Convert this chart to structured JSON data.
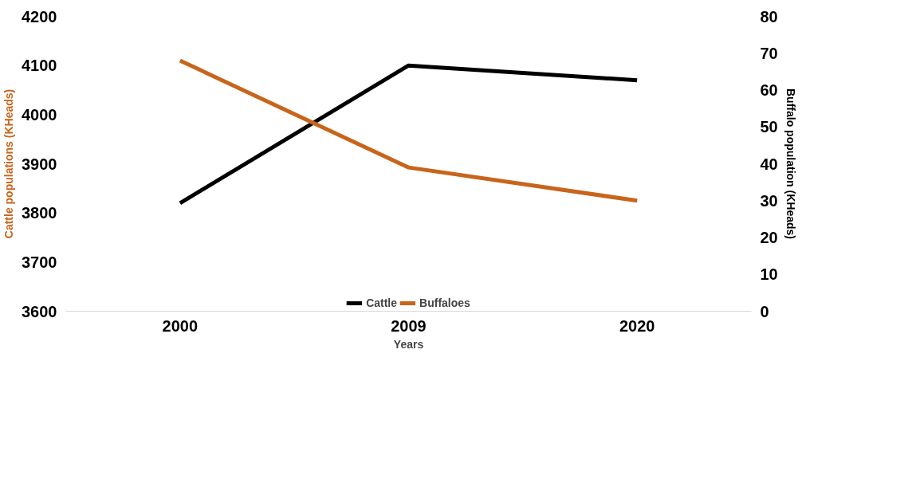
{
  "chart_data": {
    "type": "line",
    "xlabel": "Years",
    "ylabel": "Cattle populations (KHeads)",
    "y2label": "Buffalo population (KHeads)",
    "categories": [
      "2000",
      "2009",
      "2020"
    ],
    "series": [
      {
        "name": "Cattle",
        "color": "#000000",
        "values": [
          3820,
          4100,
          4070
        ]
      },
      {
        "name": "Buffaloes",
        "color": "#c8651b",
        "values": [
          68,
          39,
          30
        ],
        "axis": "y2"
      }
    ],
    "ylim": [
      3600,
      4200
    ],
    "yticks": [
      3600,
      3700,
      3800,
      3900,
      4000,
      4100,
      4200
    ],
    "y2lim": [
      0,
      80
    ],
    "y2ticks": [
      0,
      10,
      20,
      30,
      40,
      50,
      60,
      70,
      80
    ],
    "grid": false,
    "legend": "bottom",
    "marker": "none",
    "line_style": "solid"
  }
}
